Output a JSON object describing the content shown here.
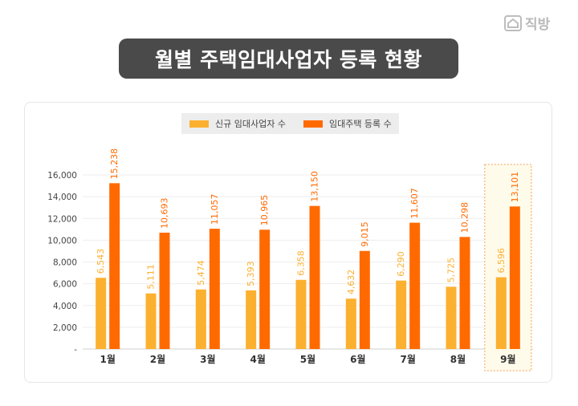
{
  "brand": {
    "name": "직방",
    "icon": "house-icon"
  },
  "chart_data": {
    "type": "bar",
    "title": "월별 주택임대사업자 등록 현황",
    "categories": [
      "1월",
      "2월",
      "3월",
      "4월",
      "5월",
      "6월",
      "7월",
      "8월",
      "9월"
    ],
    "series": [
      {
        "name": "신규 임대사업자 수",
        "color": "#fcb030",
        "values": [
          6543,
          5111,
          5474,
          5393,
          6358,
          4632,
          6290,
          5725,
          6596
        ],
        "labels": [
          "6,543",
          "5,111",
          "5,474",
          "5,393",
          "6,358",
          "4,632",
          "6,290",
          "5,725",
          "6,596"
        ]
      },
      {
        "name": "임대주택 등록 수",
        "color": "#ff6a00",
        "values": [
          15238,
          10693,
          11057,
          10965,
          13150,
          9015,
          11607,
          10298,
          13101
        ],
        "labels": [
          "15,238",
          "10,693",
          "11,057",
          "10,965",
          "13,150",
          "9,015",
          "11,607",
          "10,298",
          "13,101"
        ]
      }
    ],
    "y_ticks": [
      0,
      2000,
      4000,
      6000,
      8000,
      10000,
      12000,
      14000,
      16000
    ],
    "y_tick_labels": [
      "-",
      "2,000",
      "4,000",
      "6,000",
      "8,000",
      "10,000",
      "12,000",
      "14,000",
      "16,000"
    ],
    "ylim": [
      0,
      16000
    ],
    "grid": true,
    "legend_position": "top-center",
    "highlight_category": "9월"
  }
}
